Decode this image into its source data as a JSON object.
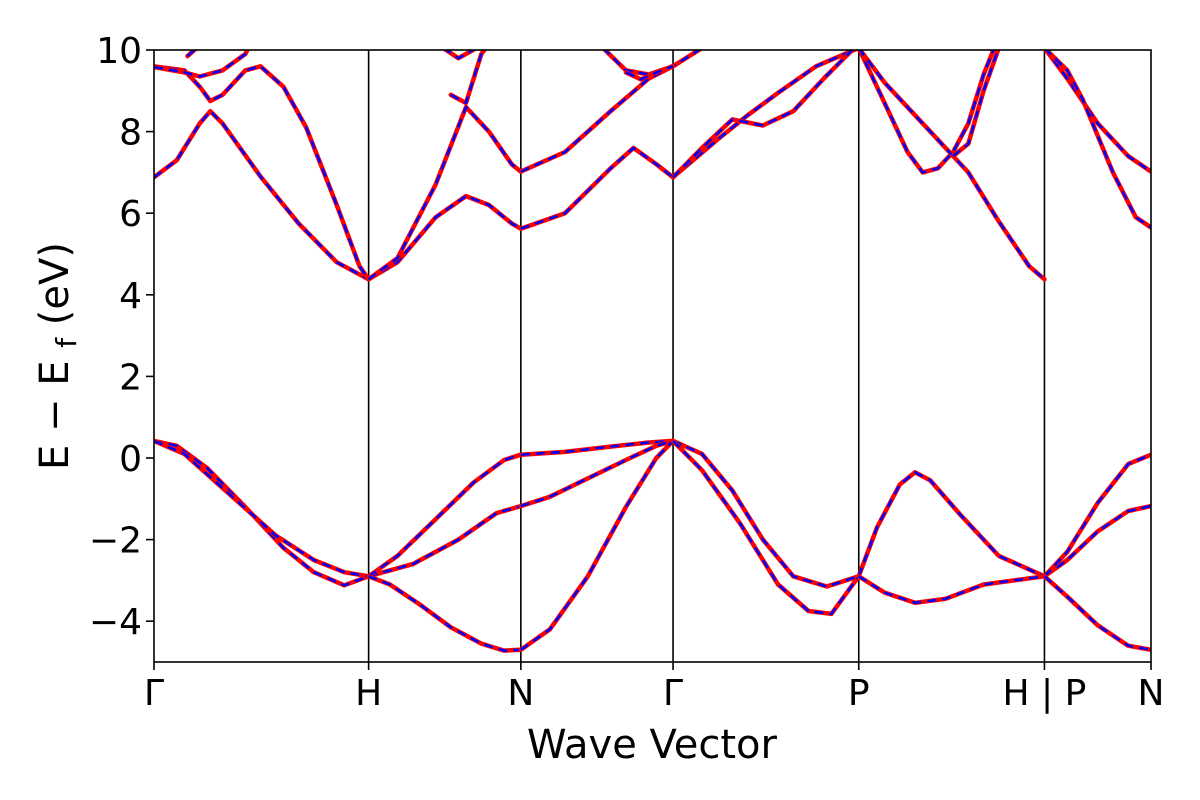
{
  "chart_data": {
    "type": "line",
    "title": "",
    "xlabel": "Wave Vector",
    "ylabel_main": "E − E",
    "ylabel_sub": "f",
    "ylabel_unit": " (eV)",
    "ylim": [
      -5,
      10
    ],
    "xlim": [
      0,
      6.55
    ],
    "yticks": [
      -4,
      -2,
      0,
      2,
      4,
      6,
      8,
      10
    ],
    "ytick_labels": [
      "−4",
      "−2",
      "0",
      "2",
      "4",
      "6",
      "8",
      "10"
    ],
    "kpoints": [
      {
        "x": 0.0,
        "label": "Γ"
      },
      {
        "x": 1.41,
        "label": "H"
      },
      {
        "x": 2.41,
        "label": "N"
      },
      {
        "x": 3.41,
        "label": "Γ"
      },
      {
        "x": 4.63,
        "label": "P"
      },
      {
        "x": 5.85,
        "label": "H | P"
      },
      {
        "x": 6.55,
        "label": "N"
      }
    ],
    "colors": {
      "solid": "#ff0000",
      "dashed": "#0000ff"
    },
    "series": [
      {
        "points": [
          [
            0,
            0.42
          ],
          [
            0.15,
            0.3
          ],
          [
            0.35,
            -0.25
          ],
          [
            0.6,
            -1.2
          ],
          [
            0.85,
            -2.2
          ],
          [
            1.05,
            -2.8
          ],
          [
            1.25,
            -3.12
          ],
          [
            1.41,
            -2.9
          ]
        ]
      },
      {
        "points": [
          [
            0,
            0.42
          ],
          [
            0.2,
            0.1
          ],
          [
            0.5,
            -0.9
          ],
          [
            0.8,
            -1.9
          ],
          [
            1.05,
            -2.5
          ],
          [
            1.25,
            -2.8
          ],
          [
            1.41,
            -2.9
          ]
        ]
      },
      {
        "points": [
          [
            1.41,
            -2.9
          ],
          [
            1.7,
            -2.6
          ],
          [
            2.0,
            -2.0
          ],
          [
            2.25,
            -1.35
          ],
          [
            2.41,
            -1.18
          ]
        ]
      },
      {
        "points": [
          [
            1.41,
            -2.9
          ],
          [
            1.6,
            -2.4
          ],
          [
            1.85,
            -1.5
          ],
          [
            2.1,
            -0.6
          ],
          [
            2.3,
            -0.05
          ],
          [
            2.41,
            0.08
          ]
        ]
      },
      {
        "points": [
          [
            1.41,
            -2.9
          ],
          [
            1.55,
            -3.1
          ],
          [
            1.75,
            -3.6
          ],
          [
            1.95,
            -4.15
          ],
          [
            2.15,
            -4.55
          ],
          [
            2.3,
            -4.72
          ],
          [
            2.41,
            -4.7
          ]
        ]
      },
      {
        "points": [
          [
            2.41,
            0.08
          ],
          [
            2.7,
            0.15
          ],
          [
            3.0,
            0.28
          ],
          [
            3.25,
            0.38
          ],
          [
            3.41,
            0.42
          ]
        ]
      },
      {
        "points": [
          [
            2.41,
            -1.18
          ],
          [
            2.6,
            -0.95
          ],
          [
            2.85,
            -0.5
          ],
          [
            3.1,
            -0.05
          ],
          [
            3.3,
            0.3
          ],
          [
            3.41,
            0.42
          ]
        ]
      },
      {
        "points": [
          [
            2.41,
            -4.7
          ],
          [
            2.6,
            -4.2
          ],
          [
            2.85,
            -2.9
          ],
          [
            3.1,
            -1.2
          ],
          [
            3.3,
            0.0
          ],
          [
            3.41,
            0.42
          ]
        ]
      },
      {
        "points": [
          [
            3.41,
            0.42
          ],
          [
            3.6,
            0.1
          ],
          [
            3.8,
            -0.8
          ],
          [
            4.0,
            -2.0
          ],
          [
            4.2,
            -2.9
          ],
          [
            4.42,
            -3.15
          ],
          [
            4.63,
            -2.9
          ]
        ]
      },
      {
        "points": [
          [
            3.41,
            0.42
          ],
          [
            3.6,
            -0.3
          ],
          [
            3.85,
            -1.6
          ],
          [
            4.1,
            -3.1
          ],
          [
            4.3,
            -3.75
          ],
          [
            4.45,
            -3.82
          ],
          [
            4.63,
            -2.9
          ]
        ]
      },
      {
        "points": [
          [
            4.63,
            -2.9
          ],
          [
            4.75,
            -1.7
          ],
          [
            4.9,
            -0.65
          ],
          [
            5.0,
            -0.35
          ],
          [
            5.1,
            -0.55
          ],
          [
            5.3,
            -1.4
          ],
          [
            5.55,
            -2.4
          ],
          [
            5.85,
            -2.9
          ]
        ]
      },
      {
        "points": [
          [
            4.63,
            -2.9
          ],
          [
            4.8,
            -3.3
          ],
          [
            5.0,
            -3.55
          ],
          [
            5.2,
            -3.45
          ],
          [
            5.45,
            -3.1
          ],
          [
            5.85,
            -2.9
          ]
        ]
      },
      {
        "points": [
          [
            5.85,
            -2.9
          ],
          [
            6.0,
            -2.5
          ],
          [
            6.2,
            -1.8
          ],
          [
            6.4,
            -1.3
          ],
          [
            6.55,
            -1.18
          ]
        ]
      },
      {
        "points": [
          [
            5.85,
            -2.9
          ],
          [
            6.0,
            -2.3
          ],
          [
            6.2,
            -1.1
          ],
          [
            6.4,
            -0.15
          ],
          [
            6.55,
            0.08
          ]
        ]
      },
      {
        "points": [
          [
            5.85,
            -2.9
          ],
          [
            6.0,
            -3.4
          ],
          [
            6.2,
            -4.1
          ],
          [
            6.4,
            -4.6
          ],
          [
            6.55,
            -4.7
          ]
        ]
      },
      {
        "points": [
          [
            0,
            6.88
          ],
          [
            0.15,
            7.3
          ],
          [
            0.3,
            8.2
          ],
          [
            0.37,
            8.5
          ],
          [
            0.45,
            8.2
          ],
          [
            0.7,
            6.9
          ],
          [
            0.95,
            5.75
          ],
          [
            1.2,
            4.8
          ],
          [
            1.41,
            4.38
          ]
        ]
      },
      {
        "points": [
          [
            0,
            9.6
          ],
          [
            0.2,
            9.5
          ],
          [
            0.3,
            9.1
          ],
          [
            0.37,
            8.75
          ],
          [
            0.45,
            8.9
          ],
          [
            0.6,
            9.5
          ],
          [
            0.7,
            9.6
          ],
          [
            0.85,
            9.1
          ],
          [
            1.0,
            8.1
          ],
          [
            1.2,
            6.2
          ],
          [
            1.35,
            4.7
          ],
          [
            1.41,
            4.38
          ]
        ]
      },
      {
        "points": [
          [
            0,
            9.58
          ],
          [
            0.2,
            9.45
          ],
          [
            0.3,
            9.35
          ],
          [
            0.45,
            9.5
          ],
          [
            0.6,
            9.9
          ],
          [
            0.62,
            10.05
          ]
        ]
      },
      {
        "points": [
          [
            0.22,
            9.85
          ],
          [
            0.28,
            10.05
          ]
        ]
      },
      {
        "points": [
          [
            1.41,
            4.38
          ],
          [
            1.6,
            4.8
          ],
          [
            1.85,
            5.9
          ],
          [
            2.05,
            6.42
          ],
          [
            2.2,
            6.2
          ],
          [
            2.35,
            5.75
          ],
          [
            2.41,
            5.62
          ]
        ]
      },
      {
        "points": [
          [
            1.41,
            4.38
          ],
          [
            1.6,
            4.9
          ],
          [
            1.85,
            6.7
          ],
          [
            2.05,
            8.6
          ],
          [
            2.2,
            8.0
          ],
          [
            2.35,
            7.2
          ],
          [
            2.41,
            7.02
          ]
        ]
      },
      {
        "points": [
          [
            1.95,
            8.9
          ],
          [
            2.05,
            8.7
          ],
          [
            2.15,
            9.9
          ],
          [
            2.18,
            10.05
          ]
        ]
      },
      {
        "points": [
          [
            1.9,
            10.05
          ],
          [
            2.0,
            9.8
          ],
          [
            2.12,
            10.05
          ]
        ]
      },
      {
        "points": [
          [
            2.41,
            5.62
          ],
          [
            2.7,
            6.0
          ],
          [
            3.0,
            7.1
          ],
          [
            3.15,
            7.6
          ],
          [
            3.3,
            7.2
          ],
          [
            3.41,
            6.88
          ]
        ]
      },
      {
        "points": [
          [
            2.41,
            7.02
          ],
          [
            2.7,
            7.5
          ],
          [
            3.0,
            8.5
          ],
          [
            3.25,
            9.3
          ],
          [
            3.41,
            9.6
          ]
        ]
      },
      {
        "points": [
          [
            3.41,
            6.88
          ],
          [
            3.7,
            7.8
          ],
          [
            3.9,
            8.4
          ],
          [
            4.1,
            8.95
          ],
          [
            4.35,
            9.6
          ],
          [
            4.63,
            10.05
          ]
        ]
      },
      {
        "points": [
          [
            3.41,
            6.88
          ],
          [
            3.6,
            7.6
          ],
          [
            3.8,
            8.3
          ],
          [
            4.0,
            8.15
          ],
          [
            4.2,
            8.5
          ],
          [
            4.4,
            9.3
          ],
          [
            4.6,
            10.05
          ]
        ]
      },
      {
        "points": [
          [
            2.95,
            10.05
          ],
          [
            3.1,
            9.5
          ],
          [
            3.25,
            9.4
          ],
          [
            3.41,
            9.6
          ],
          [
            3.6,
            10.05
          ]
        ]
      },
      {
        "points": [
          [
            3.1,
            9.45
          ],
          [
            3.2,
            9.28
          ],
          [
            3.3,
            9.45
          ],
          [
            3.41,
            9.6
          ]
        ]
      },
      {
        "points": [
          [
            4.63,
            10.05
          ],
          [
            4.8,
            8.7
          ],
          [
            4.95,
            7.5
          ],
          [
            5.05,
            7.0
          ],
          [
            5.15,
            7.1
          ],
          [
            5.25,
            7.5
          ],
          [
            5.35,
            8.2
          ],
          [
            5.45,
            9.4
          ],
          [
            5.52,
            10.05
          ]
        ]
      },
      {
        "points": [
          [
            4.63,
            10.05
          ],
          [
            4.8,
            9.2
          ],
          [
            5.0,
            8.4
          ],
          [
            5.2,
            7.6
          ],
          [
            5.35,
            7.0
          ],
          [
            5.55,
            5.8
          ],
          [
            5.75,
            4.7
          ],
          [
            5.85,
            4.38
          ]
        ]
      },
      {
        "points": [
          [
            5.25,
            7.4
          ],
          [
            5.35,
            7.7
          ],
          [
            5.45,
            9.0
          ],
          [
            5.55,
            10.05
          ]
        ]
      },
      {
        "points": [
          [
            5.85,
            10.05
          ],
          [
            6.0,
            9.3
          ],
          [
            6.2,
            8.2
          ],
          [
            6.4,
            7.4
          ],
          [
            6.55,
            7.02
          ]
        ]
      },
      {
        "points": [
          [
            5.85,
            10.05
          ],
          [
            6.0,
            9.5
          ],
          [
            6.1,
            8.8
          ],
          [
            6.3,
            7.0
          ],
          [
            6.45,
            5.9
          ],
          [
            6.55,
            5.65
          ]
        ]
      }
    ]
  }
}
